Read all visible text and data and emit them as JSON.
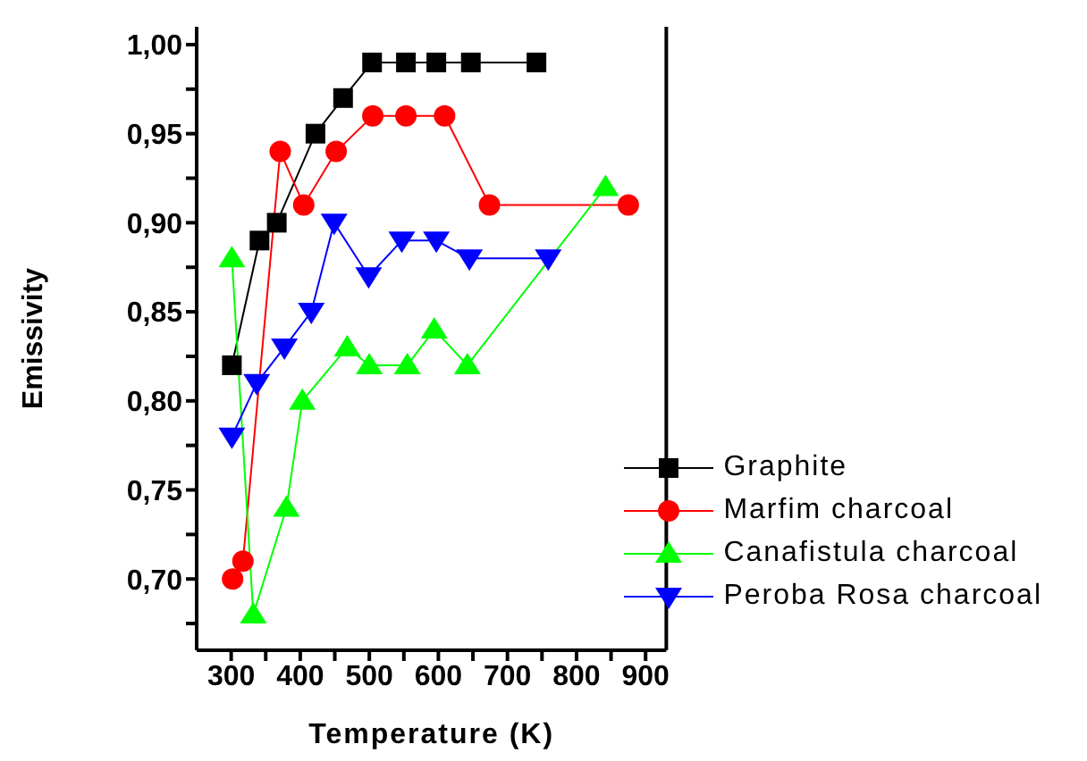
{
  "chart_data": {
    "type": "line",
    "xlabel": "Temperature (K)",
    "ylabel": "Emissivity",
    "xlim": [
      250,
      930
    ],
    "ylim": [
      0.66,
      1.01
    ],
    "xticks": [
      300,
      {
        "value": 350,
        "label": null
      },
      400,
      {
        "value": 450,
        "label": null
      },
      500,
      {
        "value": 550,
        "label": null
      },
      600,
      {
        "value": 650,
        "label": null
      },
      700,
      {
        "value": 750,
        "label": null
      },
      800,
      {
        "value": 850,
        "label": null
      },
      900
    ],
    "yticks": [
      {
        "value": 0.675,
        "label": null
      },
      {
        "value": 0.7,
        "label": "0,70"
      },
      {
        "value": 0.725,
        "label": null
      },
      {
        "value": 0.75,
        "label": "0,75"
      },
      {
        "value": 0.775,
        "label": null
      },
      {
        "value": 0.8,
        "label": "0,80"
      },
      {
        "value": 0.825,
        "label": null
      },
      {
        "value": 0.85,
        "label": "0,85"
      },
      {
        "value": 0.875,
        "label": null
      },
      {
        "value": 0.9,
        "label": "0,90"
      },
      {
        "value": 0.925,
        "label": null
      },
      {
        "value": 0.95,
        "label": "0,95"
      },
      {
        "value": 0.975,
        "label": null
      },
      {
        "value": 1.0,
        "label": "1,00"
      }
    ],
    "grid": false,
    "legend": "bottom right",
    "line_style": "solid",
    "series": [
      {
        "name": "Graphite",
        "color": "#000000",
        "marker": "square",
        "x": [
          301,
          341,
          366,
          422,
          462,
          504,
          553,
          597,
          647,
          742
        ],
        "values": [
          0.82,
          0.89,
          0.9,
          0.95,
          0.97,
          0.99,
          0.99,
          0.99,
          0.99,
          0.99
        ]
      },
      {
        "name": "Marfim charcoal",
        "color": "#ff0000",
        "marker": "circle",
        "x": [
          302,
          317,
          371,
          405,
          452,
          505,
          553,
          609,
          674,
          875
        ],
        "values": [
          0.7,
          0.71,
          0.94,
          0.91,
          0.94,
          0.96,
          0.96,
          0.96,
          0.91,
          0.91
        ]
      },
      {
        "name": "Canafistula charcoal",
        "color": "#00ff00",
        "marker": "triangle",
        "x": [
          301,
          332,
          380,
          403,
          468,
          500,
          555,
          594,
          642,
          842
        ],
        "values": [
          0.88,
          0.68,
          0.74,
          0.8,
          0.83,
          0.82,
          0.82,
          0.84,
          0.82,
          0.92
        ]
      },
      {
        "name": "Peroba Rosa charcoal",
        "color": "#0000ff",
        "marker": "triangle-down",
        "x": [
          301,
          337,
          377,
          416,
          449,
          499,
          547,
          597,
          645,
          759
        ],
        "values": [
          0.78,
          0.81,
          0.83,
          0.85,
          0.9,
          0.87,
          0.89,
          0.89,
          0.88,
          0.88
        ]
      }
    ]
  }
}
